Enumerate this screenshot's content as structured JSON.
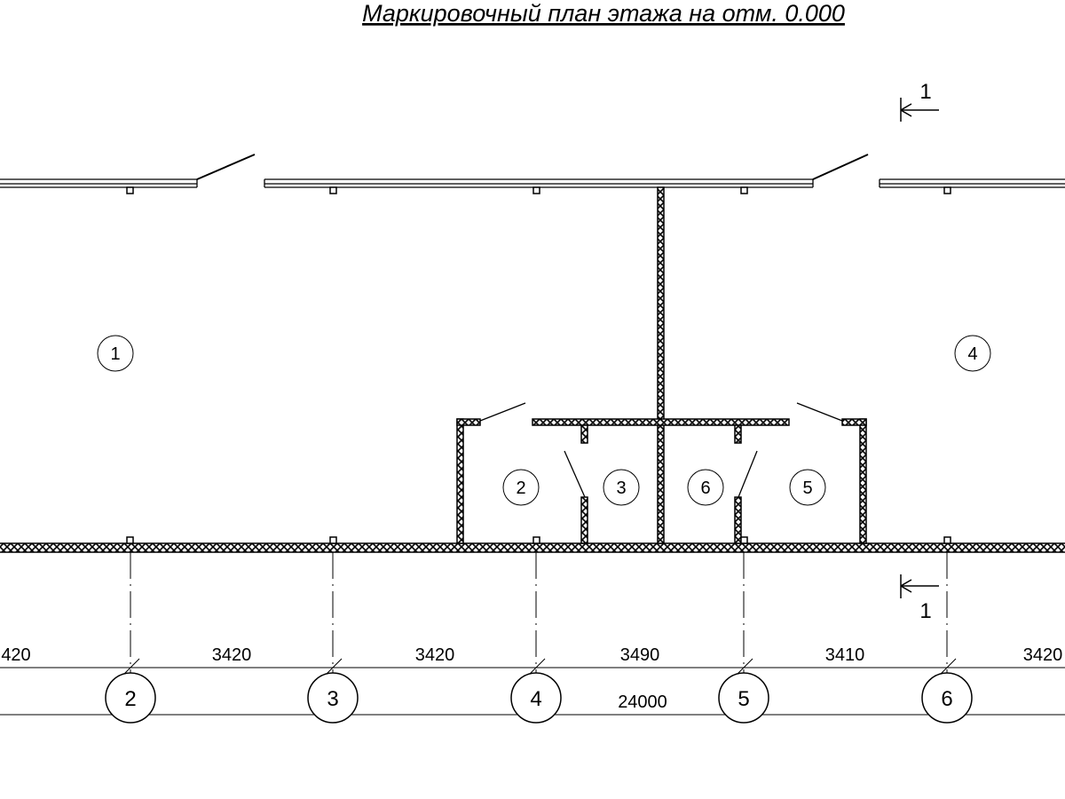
{
  "title": "Маркировочный план этажа на отм. 0.000",
  "rooms": [
    {
      "label": "1"
    },
    {
      "label": "4"
    },
    {
      "label": "2"
    },
    {
      "label": "3"
    },
    {
      "label": "6"
    },
    {
      "label": "5"
    }
  ],
  "axes": [
    {
      "label": "2"
    },
    {
      "label": "3"
    },
    {
      "label": "4"
    },
    {
      "label": "5"
    },
    {
      "label": "6"
    }
  ],
  "dimensions": {
    "spans": [
      "420",
      "3420",
      "3420",
      "3490",
      "3410",
      "3420"
    ],
    "total": "24000"
  },
  "section_marks": {
    "top": "1",
    "bottom": "1"
  },
  "colors": {
    "line": "#000000",
    "background": "#ffffff"
  }
}
